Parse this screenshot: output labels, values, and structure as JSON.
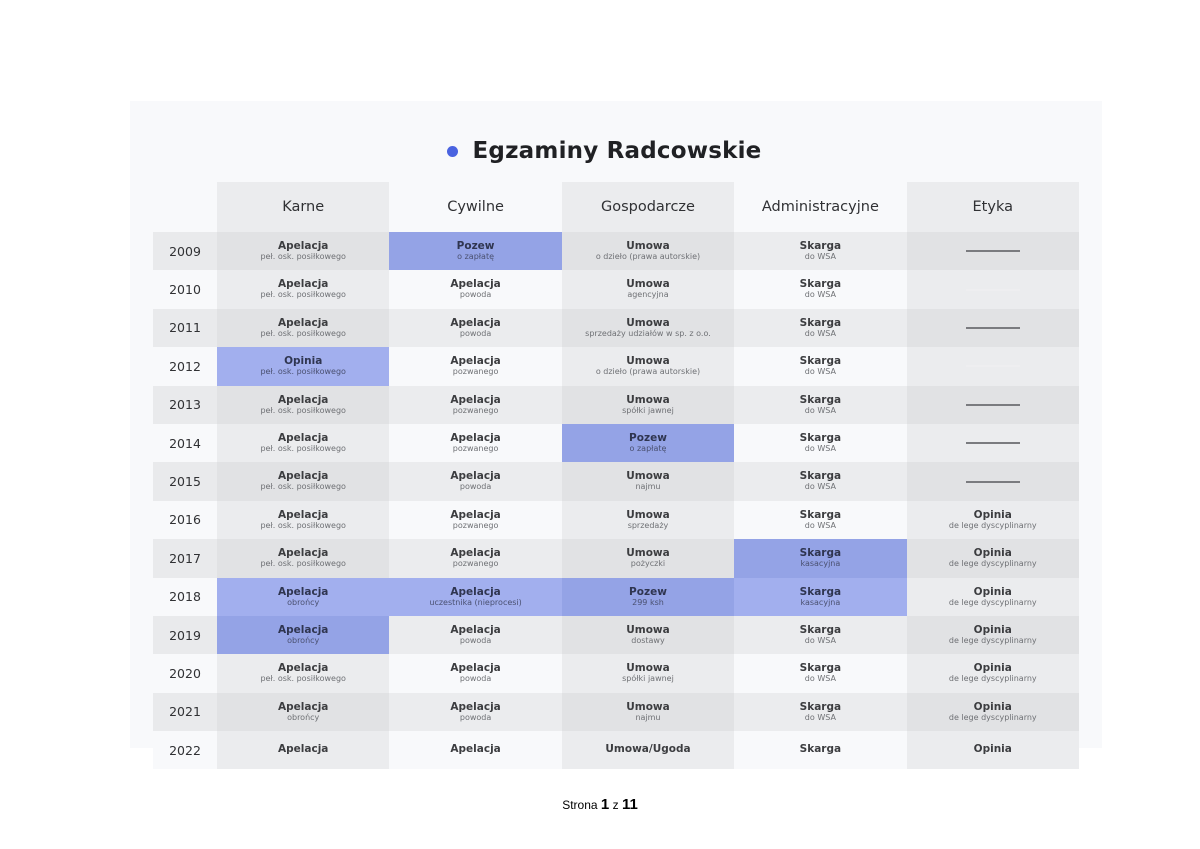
{
  "document": {
    "title": "Egzaminy Radcowskie",
    "title_dot_color": "#4a63e0",
    "highlight_colors": [
      "#94a3e6",
      "#a2afee"
    ]
  },
  "table": {
    "columns": [
      "Karne",
      "Cywilne",
      "Gospodarcze",
      "Administracyjne",
      "Etyka"
    ],
    "rows": [
      {
        "year": "2009",
        "cells": [
          {
            "main": "Apelacja",
            "sub": "peł. osk. posiłkowego"
          },
          {
            "main": "Pozew",
            "sub": "o zapłatę",
            "hl": 1
          },
          {
            "main": "Umowa",
            "sub": "o dzieło (prawa autorskie)"
          },
          {
            "main": "Skarga",
            "sub": "do WSA"
          },
          {
            "dash": true
          }
        ]
      },
      {
        "year": "2010",
        "cells": [
          {
            "main": "Apelacja",
            "sub": "peł. osk. posiłkowego"
          },
          {
            "main": "Apelacja",
            "sub": "powoda"
          },
          {
            "main": "Umowa",
            "sub": "agencyjna"
          },
          {
            "main": "Skarga",
            "sub": "do WSA"
          },
          {
            "dash": true,
            "faint": true
          }
        ]
      },
      {
        "year": "2011",
        "cells": [
          {
            "main": "Apelacja",
            "sub": "peł. osk. posiłkowego"
          },
          {
            "main": "Apelacja",
            "sub": "powoda"
          },
          {
            "main": "Umowa",
            "sub": "sprzedaży udziałów w sp. z o.o."
          },
          {
            "main": "Skarga",
            "sub": "do WSA"
          },
          {
            "dash": true
          }
        ]
      },
      {
        "year": "2012",
        "cells": [
          {
            "main": "Opinia",
            "sub": "peł. osk. posiłkowego",
            "hl": 2
          },
          {
            "main": "Apelacja",
            "sub": "pozwanego"
          },
          {
            "main": "Umowa",
            "sub": "o dzieło (prawa autorskie)"
          },
          {
            "main": "Skarga",
            "sub": "do WSA"
          },
          {
            "dash": true,
            "faint": true
          }
        ]
      },
      {
        "year": "2013",
        "cells": [
          {
            "main": "Apelacja",
            "sub": "peł. osk. posiłkowego"
          },
          {
            "main": "Apelacja",
            "sub": "pozwanego"
          },
          {
            "main": "Umowa",
            "sub": "spółki jawnej"
          },
          {
            "main": "Skarga",
            "sub": "do WSA"
          },
          {
            "dash": true
          }
        ]
      },
      {
        "year": "2014",
        "cells": [
          {
            "main": "Apelacja",
            "sub": "peł. osk. posiłkowego"
          },
          {
            "main": "Apelacja",
            "sub": "pozwanego"
          },
          {
            "main": "Pozew",
            "sub": "o zapłatę",
            "hl": 1
          },
          {
            "main": "Skarga",
            "sub": "do WSA"
          },
          {
            "dash": true
          }
        ]
      },
      {
        "year": "2015",
        "cells": [
          {
            "main": "Apelacja",
            "sub": "peł. osk. posiłkowego"
          },
          {
            "main": "Apelacja",
            "sub": "powoda"
          },
          {
            "main": "Umowa",
            "sub": "najmu"
          },
          {
            "main": "Skarga",
            "sub": "do WSA"
          },
          {
            "dash": true
          }
        ]
      },
      {
        "year": "2016",
        "cells": [
          {
            "main": "Apelacja",
            "sub": "peł. osk. posiłkowego"
          },
          {
            "main": "Apelacja",
            "sub": "pozwanego"
          },
          {
            "main": "Umowa",
            "sub": "sprzedaży"
          },
          {
            "main": "Skarga",
            "sub": "do WSA"
          },
          {
            "main": "Opinia",
            "sub": "de lege dyscyplinarny"
          }
        ]
      },
      {
        "year": "2017",
        "cells": [
          {
            "main": "Apelacja",
            "sub": "peł. osk. posiłkowego"
          },
          {
            "main": "Apelacja",
            "sub": "pozwanego"
          },
          {
            "main": "Umowa",
            "sub": "pożyczki"
          },
          {
            "main": "Skarga",
            "sub": "kasacyjna",
            "hl": 1
          },
          {
            "main": "Opinia",
            "sub": "de lege dyscyplinarny"
          }
        ]
      },
      {
        "year": "2018",
        "cells": [
          {
            "main": "Apelacja",
            "sub": "obrońcy",
            "hl": 2
          },
          {
            "main": "Apelacja",
            "sub": "uczestnika (nieprocesi)",
            "hl": 2
          },
          {
            "main": "Pozew",
            "sub": "299 ksh",
            "hl": 1
          },
          {
            "main": "Skarga",
            "sub": "kasacyjna",
            "hl": 2
          },
          {
            "main": "Opinia",
            "sub": "de lege dyscyplinarny"
          }
        ]
      },
      {
        "year": "2019",
        "cells": [
          {
            "main": "Apelacja",
            "sub": "obrońcy",
            "hl": 1
          },
          {
            "main": "Apelacja",
            "sub": "powoda"
          },
          {
            "main": "Umowa",
            "sub": "dostawy"
          },
          {
            "main": "Skarga",
            "sub": "do WSA"
          },
          {
            "main": "Opinia",
            "sub": "de lege dyscyplinarny"
          }
        ]
      },
      {
        "year": "2020",
        "cells": [
          {
            "main": "Apelacja",
            "sub": "peł. osk. posiłkowego"
          },
          {
            "main": "Apelacja",
            "sub": "powoda"
          },
          {
            "main": "Umowa",
            "sub": "spółki jawnej"
          },
          {
            "main": "Skarga",
            "sub": "do WSA"
          },
          {
            "main": "Opinia",
            "sub": "de lege dyscyplinarny"
          }
        ]
      },
      {
        "year": "2021",
        "cells": [
          {
            "main": "Apelacja",
            "sub": "obrońcy"
          },
          {
            "main": "Apelacja",
            "sub": "powoda"
          },
          {
            "main": "Umowa",
            "sub": "najmu"
          },
          {
            "main": "Skarga",
            "sub": "do WSA"
          },
          {
            "main": "Opinia",
            "sub": "de lege dyscyplinarny"
          }
        ]
      },
      {
        "year": "2022",
        "cells": [
          {
            "main": "Apelacja",
            "sub": ""
          },
          {
            "main": "Apelacja",
            "sub": ""
          },
          {
            "main": "Umowa/Ugoda",
            "sub": ""
          },
          {
            "main": "Skarga",
            "sub": ""
          },
          {
            "main": "Opinia",
            "sub": ""
          }
        ]
      }
    ]
  },
  "footer": {
    "prefix": "Strona",
    "current_page": "1",
    "separator": "z",
    "total_pages": "11"
  }
}
